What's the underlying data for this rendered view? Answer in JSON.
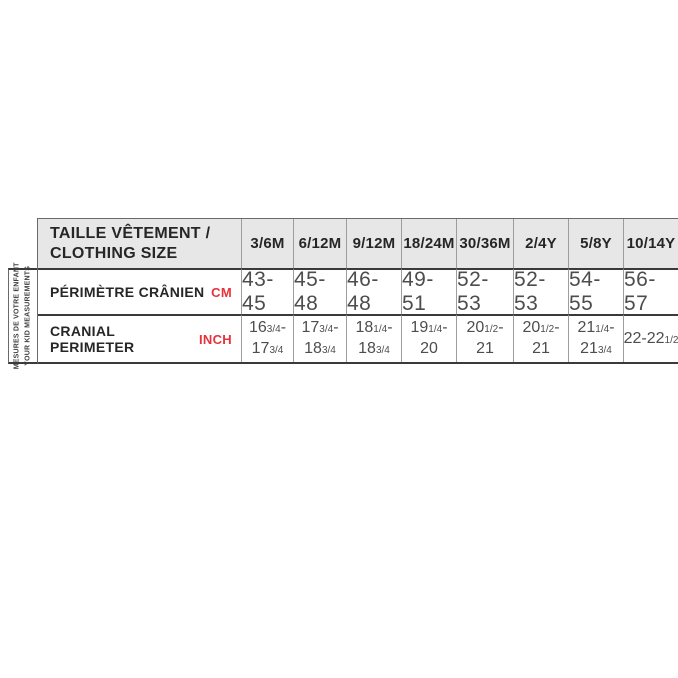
{
  "chart_data": {
    "type": "table",
    "title": "TAILLE VÊTEMENT / CLOTHING SIZE",
    "row_group_label": "MESURES DE VOTRE ENFANT / YOUR KID MEASUREMENTS",
    "categories": [
      "3/6M",
      "6/12M",
      "9/12M",
      "18/24M",
      "30/36M",
      "2/4Y",
      "5/8Y",
      "10/14Y"
    ],
    "series": [
      {
        "name": "PÉRIMÈTRE CRÂNIEN",
        "unit": "CM",
        "values": [
          "43-45",
          "45-48",
          "46-48",
          "49-51",
          "52-53",
          "52-53",
          "54-55",
          "56-57"
        ]
      },
      {
        "name": "CRANIAL PERIMETER",
        "unit": "INCH",
        "values": [
          "16 3/4 - 17 3/4",
          "17 3/4 - 18 3/4",
          "18 1/4 - 18 3/4",
          "19 1/4 - 20",
          "20 1/2 - 21",
          "20 1/2 - 21",
          "21 1/4 - 21 3/4",
          "22 - 22 1/2"
        ]
      }
    ]
  },
  "ui": {
    "title_line1": "TAILLE VÊTEMENT /",
    "title_line2": "CLOTHING SIZE",
    "columns": [
      "3/6M",
      "6/12M",
      "9/12M",
      "18/24M",
      "30/36M",
      "2/4Y",
      "5/8Y",
      "10/14Y"
    ],
    "cm": {
      "label": "PÉRIMÈTRE CRÂNIEN",
      "unit": "CM",
      "values": [
        "43-45",
        "45-48",
        "46-48",
        "49-51",
        "52-53",
        "52-53",
        "54-55",
        "56-57"
      ]
    },
    "inch": {
      "label": "CRANIAL PERIMETER",
      "unit": "INCH",
      "rich": [
        [
          [
            "16",
            "3/4",
            "-"
          ],
          [
            "17",
            "3/4"
          ]
        ],
        [
          [
            "17",
            "3/4",
            "-"
          ],
          [
            "18",
            "3/4"
          ]
        ],
        [
          [
            "18",
            "1/4",
            "-"
          ],
          [
            "18",
            "3/4"
          ]
        ],
        [
          [
            "19",
            "1/4",
            "-"
          ],
          [
            "20"
          ]
        ],
        [
          [
            "20",
            "1/2",
            "-"
          ],
          [
            "21"
          ]
        ],
        [
          [
            "20",
            "1/2",
            "-"
          ],
          [
            "21"
          ]
        ],
        [
          [
            "21",
            "1/4",
            "-"
          ],
          [
            "21",
            "3/4"
          ]
        ],
        [
          [
            "22-22",
            "1/2"
          ]
        ]
      ]
    },
    "sidebar": {
      "line1": "MESURES DE VOTRE ENFANT",
      "line2": "YOUR KID MEASUREMENTS"
    },
    "colors": {
      "accent_red": "#e8323a",
      "header_bg": "#e7e7e7"
    }
  }
}
